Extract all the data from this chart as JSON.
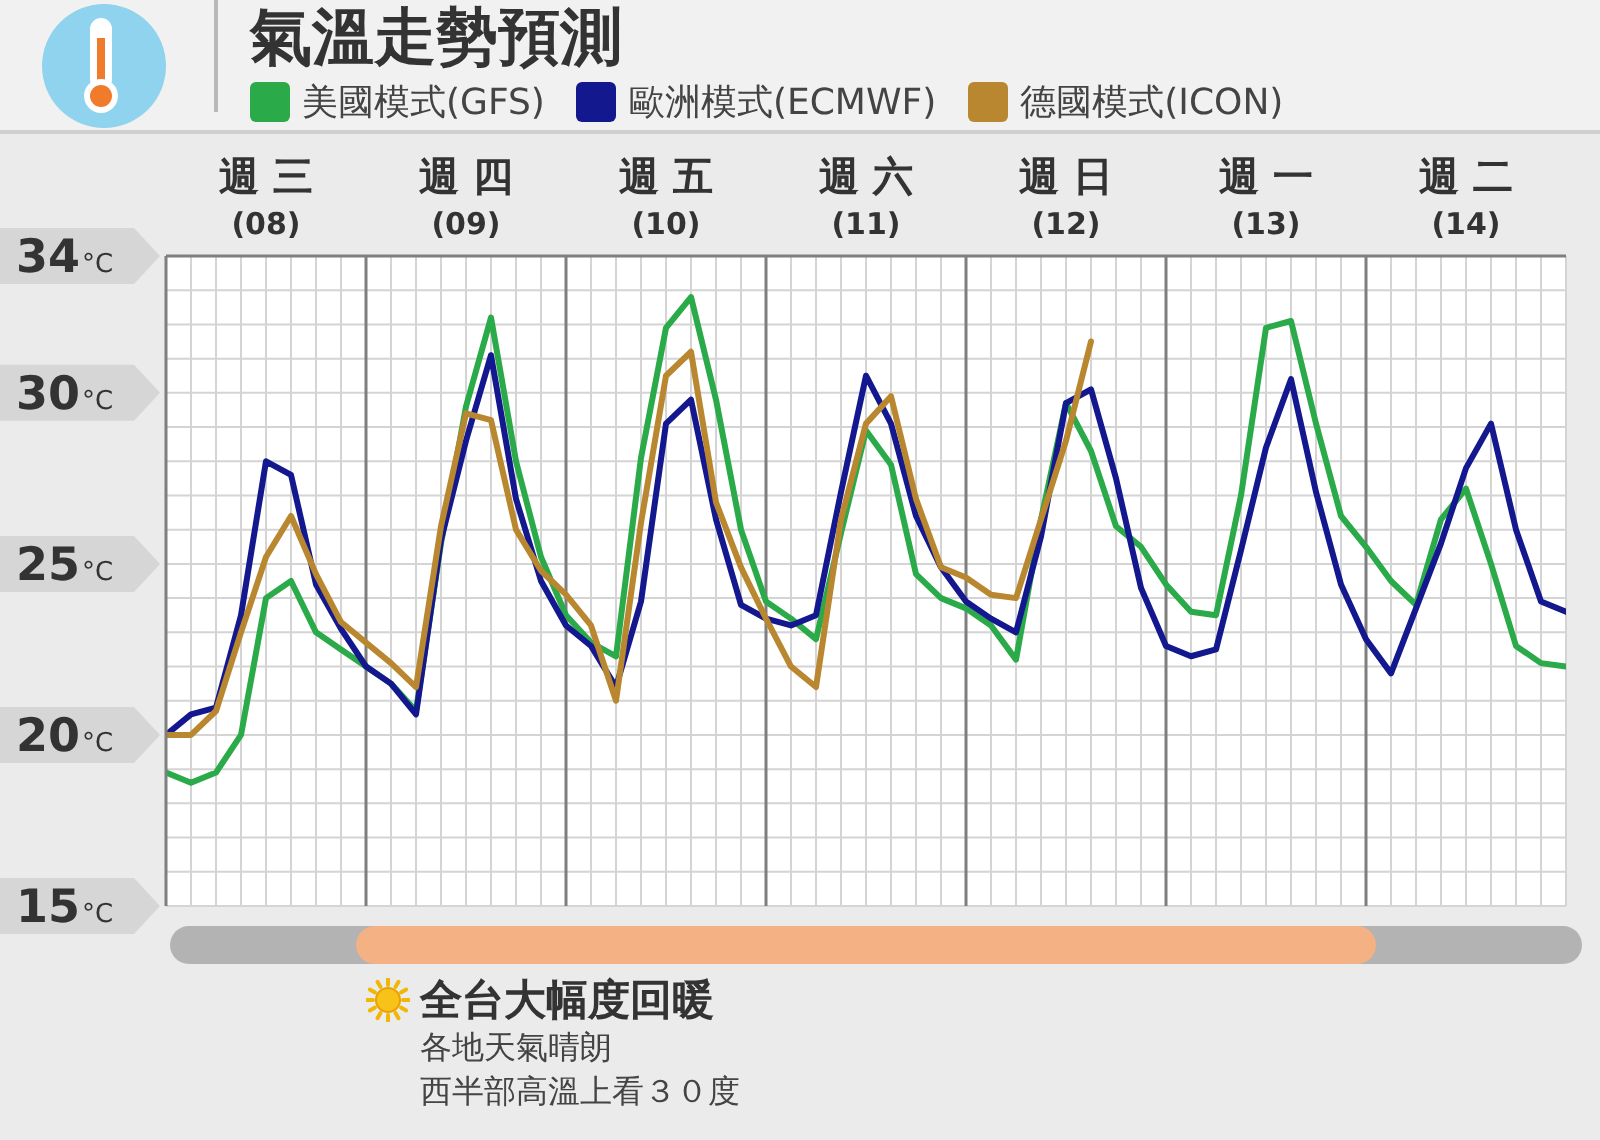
{
  "chart_data": {
    "type": "line",
    "title": "氣溫走勢預測",
    "categories": [
      null,
      null,
      null,
      null,
      "週 三\n(08)",
      null,
      null,
      null,
      null,
      null,
      null,
      null,
      "週 四\n(09)",
      null,
      null,
      null,
      null,
      null,
      null,
      null,
      "週 五\n(10)",
      null,
      null,
      null,
      null,
      null,
      null,
      null,
      "週 六\n(11)",
      null,
      null,
      null,
      null,
      null,
      null,
      null,
      "週 日\n(12)",
      null,
      null,
      null,
      null,
      null,
      null,
      null,
      "週 一\n(13)",
      null,
      null,
      null,
      null,
      null,
      null,
      null,
      "週 二\n(14)",
      null,
      null,
      null,
      null
    ],
    "ylim": [
      15,
      34
    ],
    "yticks": [
      {
        "value": 15,
        "label": "15°C"
      },
      {
        "value": 16,
        "label": null
      },
      {
        "value": 17,
        "label": null
      },
      {
        "value": 18,
        "label": null
      },
      {
        "value": 19,
        "label": null
      },
      {
        "value": 20,
        "label": "20°C"
      },
      {
        "value": 21,
        "label": null
      },
      {
        "value": 22,
        "label": null
      },
      {
        "value": 23,
        "label": null
      },
      {
        "value": 24,
        "label": null
      },
      {
        "value": 25,
        "label": "25°C"
      },
      {
        "value": 26,
        "label": null
      },
      {
        "value": 27,
        "label": null
      },
      {
        "value": 28,
        "label": null
      },
      {
        "value": 29,
        "label": null
      },
      {
        "value": 30,
        "label": "30°C"
      },
      {
        "value": 31,
        "label": null
      },
      {
        "value": 32,
        "label": null
      },
      {
        "value": 33,
        "label": null
      },
      {
        "value": 34,
        "label": "34°C"
      }
    ],
    "grid": true,
    "legend": "top",
    "series": [
      {
        "name": "美國模式(GFS)",
        "color": "#2aaa48",
        "values": [
          18.9,
          18.6,
          18.9,
          20.0,
          24.0,
          24.5,
          23.0,
          22.5,
          22.0,
          21.5,
          20.7,
          25.6,
          29.6,
          32.2,
          28.0,
          25.2,
          23.5,
          22.7,
          22.3,
          28.1,
          31.9,
          32.8,
          29.8,
          26.0,
          23.9,
          23.4,
          22.8,
          25.9,
          28.9,
          27.9,
          24.7,
          24.0,
          23.7,
          23.2,
          22.2,
          26.3,
          29.7,
          28.3,
          26.1,
          25.5,
          24.4,
          23.6,
          23.5,
          27.0,
          31.9,
          32.1,
          29.1,
          26.4,
          25.5,
          24.5,
          23.8,
          26.3,
          27.2,
          25.0,
          22.6,
          22.1,
          22.0
        ]
      },
      {
        "name": "歐洲模式(ECMWF)",
        "color": "#13188f",
        "values": [
          20.0,
          20.6,
          20.8,
          23.5,
          28.0,
          27.6,
          24.4,
          23.1,
          22.0,
          21.5,
          20.6,
          25.7,
          28.6,
          31.1,
          26.9,
          24.5,
          23.2,
          22.6,
          21.4,
          23.9,
          29.1,
          29.8,
          26.3,
          23.8,
          23.4,
          23.2,
          23.5,
          27.1,
          30.5,
          29.1,
          26.4,
          24.9,
          23.9,
          23.4,
          23.0,
          25.8,
          29.7,
          30.1,
          27.5,
          24.3,
          22.6,
          22.3,
          22.5,
          25.4,
          28.4,
          30.4,
          27.1,
          24.4,
          22.8,
          21.8,
          23.7,
          25.6,
          27.8,
          29.1,
          26.0,
          23.9,
          23.6
        ]
      },
      {
        "name": "德國模式(ICON)",
        "color": "#b8872f",
        "values": [
          20.0,
          20.0,
          20.7,
          23.0,
          25.2,
          26.4,
          24.7,
          23.3,
          22.7,
          22.1,
          21.4,
          26.1,
          29.4,
          29.2,
          26.0,
          24.8,
          24.1,
          23.2,
          21.0,
          26.2,
          30.5,
          31.2,
          26.8,
          24.9,
          23.4,
          22.0,
          21.4,
          26.3,
          29.1,
          29.9,
          26.9,
          24.9,
          24.6,
          24.1,
          24.0,
          26.3,
          28.6,
          31.5,
          null,
          null,
          null,
          null,
          null,
          null,
          null,
          null,
          null,
          null,
          null,
          null,
          null,
          null,
          null,
          null,
          null,
          null,
          null
        ]
      }
    ],
    "annotations": [
      "全台大幅度回暖",
      "各地天氣晴朗",
      "西半部高溫上看３０度"
    ]
  }
}
